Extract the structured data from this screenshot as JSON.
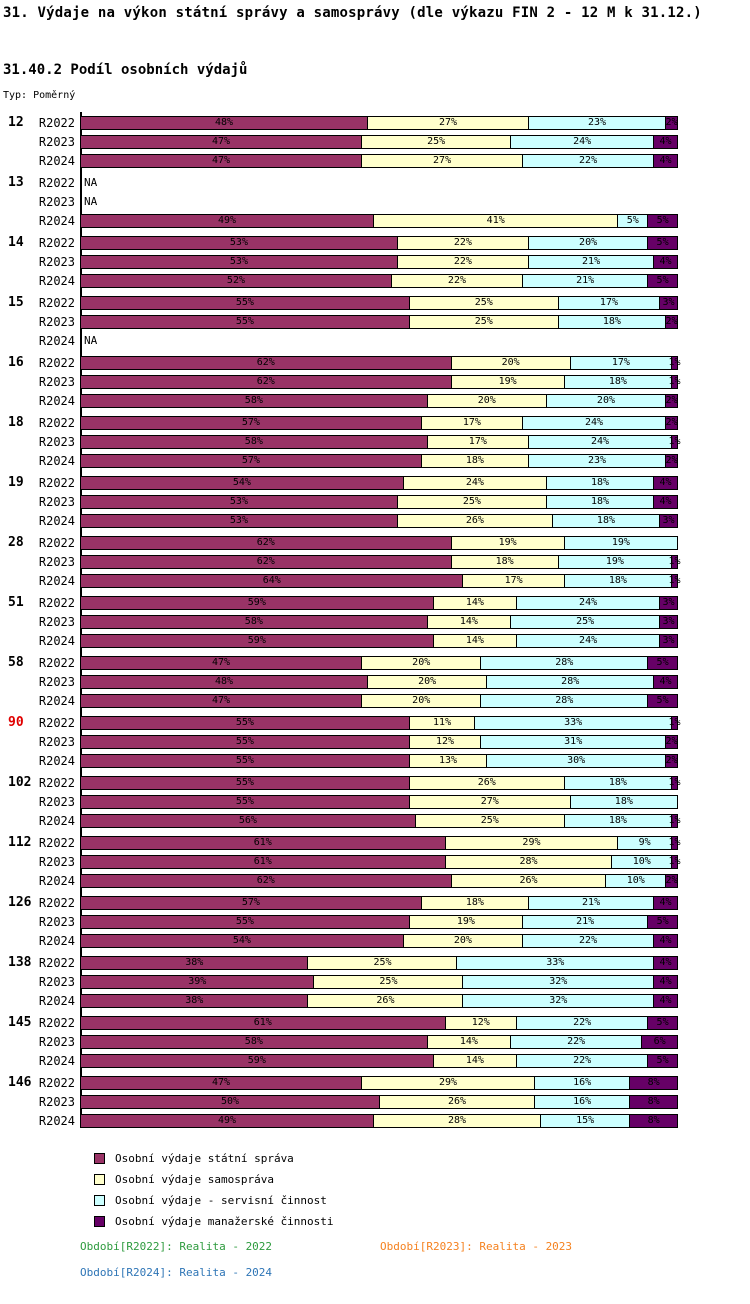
{
  "title": "31. Výdaje na výkon státní správy a samosprávy (dle výkazu FIN 2 - 12 M k 31.12.)",
  "subtitle": "31.40.2 Podíl osobních výdajů",
  "type_label": "Typ: Poměrný",
  "na_label": "NA",
  "chart_data": {
    "type": "bar",
    "variant": "horizontal-stacked-percent",
    "unit": "%",
    "xlim": [
      0,
      100
    ],
    "grid": false,
    "legend_position": "bottom-left",
    "highlight_color": "#E00000",
    "row_labels": [
      "R2022",
      "R2023",
      "R2024"
    ],
    "series": [
      {
        "name": "Osobní výdaje státní správa",
        "color": "#993366"
      },
      {
        "name": "Osobní výdaje samospráva",
        "color": "#FFFFCC"
      },
      {
        "name": "Osobní výdaje - servisní činnost",
        "color": "#CCFFFF"
      },
      {
        "name": "Osobní výdaje manažerské činnosti",
        "color": "#660066"
      }
    ],
    "groups": [
      {
        "label": "12",
        "highlight": false,
        "rows": [
          {
            "period": "R2022",
            "values": [
              48,
              27,
              23,
              2
            ]
          },
          {
            "period": "R2023",
            "values": [
              47,
              25,
              24,
              4
            ]
          },
          {
            "period": "R2024",
            "values": [
              47,
              27,
              22,
              4
            ]
          }
        ]
      },
      {
        "label": "13",
        "highlight": false,
        "rows": [
          {
            "period": "R2022",
            "values": null
          },
          {
            "period": "R2023",
            "values": null
          },
          {
            "period": "R2024",
            "values": [
              49,
              41,
              5,
              5
            ]
          }
        ]
      },
      {
        "label": "14",
        "highlight": false,
        "rows": [
          {
            "period": "R2022",
            "values": [
              53,
              22,
              20,
              5
            ]
          },
          {
            "period": "R2023",
            "values": [
              53,
              22,
              21,
              4
            ]
          },
          {
            "period": "R2024",
            "values": [
              52,
              22,
              21,
              5
            ]
          }
        ]
      },
      {
        "label": "15",
        "highlight": false,
        "rows": [
          {
            "period": "R2022",
            "values": [
              55,
              25,
              17,
              3
            ]
          },
          {
            "period": "R2023",
            "values": [
              55,
              25,
              18,
              2
            ]
          },
          {
            "period": "R2024",
            "values": null
          }
        ]
      },
      {
        "label": "16",
        "highlight": false,
        "rows": [
          {
            "period": "R2022",
            "values": [
              62,
              20,
              17,
              1
            ]
          },
          {
            "period": "R2023",
            "values": [
              62,
              19,
              18,
              1
            ]
          },
          {
            "period": "R2024",
            "values": [
              58,
              20,
              20,
              2
            ]
          }
        ]
      },
      {
        "label": "18",
        "highlight": false,
        "rows": [
          {
            "period": "R2022",
            "values": [
              57,
              17,
              24,
              2
            ]
          },
          {
            "period": "R2023",
            "values": [
              58,
              17,
              24,
              1
            ]
          },
          {
            "period": "R2024",
            "values": [
              57,
              18,
              23,
              2
            ]
          }
        ]
      },
      {
        "label": "19",
        "highlight": false,
        "rows": [
          {
            "period": "R2022",
            "values": [
              54,
              24,
              18,
              4
            ]
          },
          {
            "period": "R2023",
            "values": [
              53,
              25,
              18,
              4
            ]
          },
          {
            "period": "R2024",
            "values": [
              53,
              26,
              18,
              3
            ]
          }
        ]
      },
      {
        "label": "28",
        "highlight": false,
        "rows": [
          {
            "period": "R2022",
            "values": [
              62,
              19,
              19,
              0
            ]
          },
          {
            "period": "R2023",
            "values": [
              62,
              18,
              19,
              1
            ]
          },
          {
            "period": "R2024",
            "values": [
              64,
              17,
              18,
              1
            ]
          }
        ]
      },
      {
        "label": "51",
        "highlight": false,
        "rows": [
          {
            "period": "R2022",
            "values": [
              59,
              14,
              24,
              3
            ]
          },
          {
            "period": "R2023",
            "values": [
              58,
              14,
              25,
              3
            ]
          },
          {
            "period": "R2024",
            "values": [
              59,
              14,
              24,
              3
            ]
          }
        ]
      },
      {
        "label": "58",
        "highlight": false,
        "rows": [
          {
            "period": "R2022",
            "values": [
              47,
              20,
              28,
              5
            ]
          },
          {
            "period": "R2023",
            "values": [
              48,
              20,
              28,
              4
            ]
          },
          {
            "period": "R2024",
            "values": [
              47,
              20,
              28,
              5
            ]
          }
        ]
      },
      {
        "label": "90",
        "highlight": true,
        "rows": [
          {
            "period": "R2022",
            "values": [
              55,
              11,
              33,
              1
            ]
          },
          {
            "period": "R2023",
            "values": [
              55,
              12,
              31,
              2
            ]
          },
          {
            "period": "R2024",
            "values": [
              55,
              13,
              30,
              2
            ]
          }
        ]
      },
      {
        "label": "102",
        "highlight": false,
        "rows": [
          {
            "period": "R2022",
            "values": [
              55,
              26,
              18,
              1
            ]
          },
          {
            "period": "R2023",
            "values": [
              55,
              27,
              18,
              0
            ]
          },
          {
            "period": "R2024",
            "values": [
              56,
              25,
              18,
              1
            ]
          }
        ]
      },
      {
        "label": "112",
        "highlight": false,
        "rows": [
          {
            "period": "R2022",
            "values": [
              61,
              29,
              9,
              1
            ]
          },
          {
            "period": "R2023",
            "values": [
              61,
              28,
              10,
              1
            ]
          },
          {
            "period": "R2024",
            "values": [
              62,
              26,
              10,
              2
            ]
          }
        ]
      },
      {
        "label": "126",
        "highlight": false,
        "rows": [
          {
            "period": "R2022",
            "values": [
              57,
              18,
              21,
              4
            ]
          },
          {
            "period": "R2023",
            "values": [
              55,
              19,
              21,
              5
            ]
          },
          {
            "period": "R2024",
            "values": [
              54,
              20,
              22,
              4
            ]
          }
        ]
      },
      {
        "label": "138",
        "highlight": false,
        "rows": [
          {
            "period": "R2022",
            "values": [
              38,
              25,
              33,
              4
            ]
          },
          {
            "period": "R2023",
            "values": [
              39,
              25,
              32,
              4
            ]
          },
          {
            "period": "R2024",
            "values": [
              38,
              26,
              32,
              4
            ]
          }
        ]
      },
      {
        "label": "145",
        "highlight": false,
        "rows": [
          {
            "period": "R2022",
            "values": [
              61,
              12,
              22,
              5
            ]
          },
          {
            "period": "R2023",
            "values": [
              58,
              14,
              22,
              6
            ]
          },
          {
            "period": "R2024",
            "values": [
              59,
              14,
              22,
              5
            ]
          }
        ]
      },
      {
        "label": "146",
        "highlight": false,
        "rows": [
          {
            "period": "R2022",
            "values": [
              47,
              29,
              16,
              8
            ]
          },
          {
            "period": "R2023",
            "values": [
              50,
              26,
              16,
              8
            ]
          },
          {
            "period": "R2024",
            "values": [
              49,
              28,
              15,
              8
            ]
          }
        ]
      }
    ]
  },
  "legend": {
    "items": [
      {
        "label": "Osobní výdaje státní správa",
        "color": "#993366"
      },
      {
        "label": "Osobní výdaje samospráva",
        "color": "#FFFFCC"
      },
      {
        "label": "Osobní výdaje - servisní činnost",
        "color": "#CCFFFF"
      },
      {
        "label": "Osobní výdaje manažerské činnosti",
        "color": "#660066"
      }
    ]
  },
  "footer": {
    "items": [
      {
        "text": "Období[R2022]: Realita - 2022",
        "color": "#2E9B3E"
      },
      {
        "text": "Období[R2023]: Realita - 2023",
        "color": "#F58220"
      },
      {
        "text": "Období[R2024]: Realita - 2024",
        "color": "#2E75B6"
      }
    ]
  }
}
